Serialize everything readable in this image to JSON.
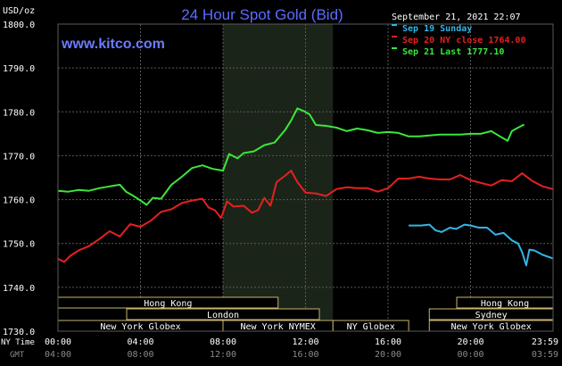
{
  "header": {
    "title": "24 Hour Spot Gold (Bid)",
    "currency": "USD/oz",
    "website": "www.kitco.com",
    "datetime": "September 21, 2021 22:07"
  },
  "colors": {
    "background": "#000000",
    "title": "#5a6cff",
    "website": "#6a7cff",
    "grid": "#5a5a5a",
    "axis_text": "#ffffff",
    "ny_band": "#1b2418",
    "sunday": "#33b6e6",
    "ny_close": "#e62020",
    "last": "#3be63b",
    "session_border": "#c8b46e"
  },
  "legend": {
    "placement": "top-right",
    "items": [
      {
        "label": "Sep 19 Sunday",
        "color": "#33b6e6"
      },
      {
        "label": "Sep 20 NY close 1764.00",
        "color": "#e62020"
      },
      {
        "label": "Sep 21 Last 1777.10",
        "color": "#3be63b"
      }
    ]
  },
  "axes": {
    "ny_time_label": "NY Time",
    "gmt_label": "GMT",
    "ny_ticks": [
      "00:00",
      "04:00",
      "08:00",
      "12:00",
      "16:00",
      "20:00",
      "23:59"
    ],
    "gmt_ticks": [
      "04:00",
      "08:00",
      "12:00",
      "16:00",
      "20:00",
      "00:00",
      "03:59"
    ]
  },
  "sessions": [
    {
      "label": "Hong Kong",
      "start": 0,
      "end": 10.67,
      "row": 0
    },
    {
      "label": "Hong Kong",
      "start": 19.33,
      "end": 24,
      "row": 0
    },
    {
      "label": "London",
      "start": 3.33,
      "end": 12.67,
      "row": 1
    },
    {
      "label": "Sydney",
      "start": 18,
      "end": 24,
      "row": 1
    },
    {
      "label": "New York Globex",
      "start": 0,
      "end": 8,
      "row": 2
    },
    {
      "label": "New York NYMEX",
      "start": 8,
      "end": 13.33,
      "row": 2
    },
    {
      "label": "NY Globex",
      "start": 13.33,
      "end": 17,
      "row": 2
    },
    {
      "label": "New York Globex",
      "start": 18,
      "end": 24,
      "row": 2
    }
  ],
  "chart_data": {
    "type": "line",
    "title": "24 Hour Spot Gold (Bid)",
    "ylabel": "USD/oz",
    "xlabel": "NY Time",
    "xlim": [
      0,
      24
    ],
    "ylim": [
      1730,
      1800
    ],
    "yticks": [
      "1730.0",
      "1740.0",
      "1750.0",
      "1760.0",
      "1770.0",
      "1780.0",
      "1790.0",
      "1800.0"
    ],
    "grid": true,
    "shaded_range": [
      8,
      13.33
    ],
    "series": [
      {
        "name": "Sep 19 Sunday",
        "color": "#33b6e6",
        "points": [
          [
            17,
            1754.1
          ],
          [
            17.6,
            1754.1
          ],
          [
            18,
            1754.3
          ],
          [
            18.3,
            1753
          ],
          [
            18.6,
            1752.6
          ],
          [
            19,
            1753.6
          ],
          [
            19.3,
            1753.3
          ],
          [
            19.7,
            1754.3
          ],
          [
            20,
            1754.1
          ],
          [
            20.4,
            1753.6
          ],
          [
            20.8,
            1753.6
          ],
          [
            21.2,
            1752
          ],
          [
            21.6,
            1752.4
          ],
          [
            22,
            1750.7
          ],
          [
            22.3,
            1750
          ],
          [
            22.5,
            1748
          ],
          [
            22.7,
            1745
          ],
          [
            22.85,
            1748.6
          ],
          [
            23.1,
            1748.4
          ],
          [
            23.5,
            1747.4
          ],
          [
            23.99,
            1746.6
          ]
        ]
      },
      {
        "name": "Sep 20 NY close 1764.00",
        "color": "#e62020",
        "points": [
          [
            0,
            1746.5
          ],
          [
            0.3,
            1745.8
          ],
          [
            0.6,
            1747.2
          ],
          [
            1,
            1748.4
          ],
          [
            1.5,
            1749.4
          ],
          [
            2,
            1751
          ],
          [
            2.5,
            1752.8
          ],
          [
            3,
            1751.6
          ],
          [
            3.5,
            1754.4
          ],
          [
            4,
            1753.8
          ],
          [
            4.5,
            1755.2
          ],
          [
            5,
            1757.2
          ],
          [
            5.5,
            1757.8
          ],
          [
            6,
            1759.2
          ],
          [
            6.5,
            1759.8
          ],
          [
            7,
            1760.2
          ],
          [
            7.3,
            1758.2
          ],
          [
            7.6,
            1757.6
          ],
          [
            7.9,
            1755.8
          ],
          [
            8.2,
            1759.6
          ],
          [
            8.5,
            1758.4
          ],
          [
            9,
            1758.6
          ],
          [
            9.4,
            1757
          ],
          [
            9.7,
            1757.6
          ],
          [
            10,
            1760.4
          ],
          [
            10.3,
            1758.6
          ],
          [
            10.6,
            1764
          ],
          [
            11,
            1765.4
          ],
          [
            11.3,
            1766.6
          ],
          [
            11.6,
            1764
          ],
          [
            12,
            1761.6
          ],
          [
            12.5,
            1761.4
          ],
          [
            13,
            1760.8
          ],
          [
            13.5,
            1762.4
          ],
          [
            14,
            1762.8
          ],
          [
            14.5,
            1762.6
          ],
          [
            15,
            1762.6
          ],
          [
            15.5,
            1761.8
          ],
          [
            16,
            1762.6
          ],
          [
            16.5,
            1764.8
          ],
          [
            17,
            1764.8
          ],
          [
            17.5,
            1765.2
          ],
          [
            18,
            1764.8
          ],
          [
            18.5,
            1764.6
          ],
          [
            19,
            1764.6
          ],
          [
            19.5,
            1765.6
          ],
          [
            20,
            1764.4
          ],
          [
            20.5,
            1763.8
          ],
          [
            21,
            1763.2
          ],
          [
            21.5,
            1764.4
          ],
          [
            22,
            1764.2
          ],
          [
            22.5,
            1766
          ],
          [
            23,
            1764.2
          ],
          [
            23.5,
            1763
          ],
          [
            23.99,
            1762.4
          ]
        ]
      },
      {
        "name": "Sep 21 Last 1777.10",
        "color": "#3be63b",
        "points": [
          [
            0,
            1762
          ],
          [
            0.5,
            1761.8
          ],
          [
            1,
            1762.2
          ],
          [
            1.5,
            1762
          ],
          [
            2,
            1762.6
          ],
          [
            2.5,
            1763
          ],
          [
            3,
            1763.4
          ],
          [
            3.3,
            1761.8
          ],
          [
            3.6,
            1761
          ],
          [
            4,
            1759.8
          ],
          [
            4.3,
            1758.8
          ],
          [
            4.6,
            1760.4
          ],
          [
            5,
            1760.2
          ],
          [
            5.5,
            1763.4
          ],
          [
            6,
            1765.2
          ],
          [
            6.5,
            1767.2
          ],
          [
            7,
            1767.8
          ],
          [
            7.5,
            1767
          ],
          [
            8,
            1766.6
          ],
          [
            8.3,
            1770.4
          ],
          [
            8.7,
            1769.4
          ],
          [
            9,
            1770.6
          ],
          [
            9.5,
            1771
          ],
          [
            10,
            1772.4
          ],
          [
            10.5,
            1773
          ],
          [
            11,
            1775.8
          ],
          [
            11.3,
            1778
          ],
          [
            11.6,
            1780.8
          ],
          [
            11.9,
            1780.2
          ],
          [
            12.2,
            1779.4
          ],
          [
            12.5,
            1777
          ],
          [
            13,
            1776.8
          ],
          [
            13.5,
            1776.4
          ],
          [
            14,
            1775.6
          ],
          [
            14.5,
            1776.2
          ],
          [
            15,
            1775.8
          ],
          [
            15.5,
            1775.2
          ],
          [
            16,
            1775.4
          ],
          [
            16.5,
            1775.2
          ],
          [
            17,
            1774.4
          ],
          [
            17.5,
            1774.4
          ],
          [
            18,
            1774.6
          ],
          [
            18.5,
            1774.8
          ],
          [
            19,
            1774.8
          ],
          [
            19.5,
            1774.8
          ],
          [
            20,
            1775
          ],
          [
            20.5,
            1775
          ],
          [
            21,
            1775.6
          ],
          [
            21.5,
            1774.2
          ],
          [
            21.8,
            1773.4
          ],
          [
            22,
            1775.6
          ],
          [
            22.3,
            1776.4
          ],
          [
            22.6,
            1777.1
          ]
        ]
      }
    ]
  }
}
